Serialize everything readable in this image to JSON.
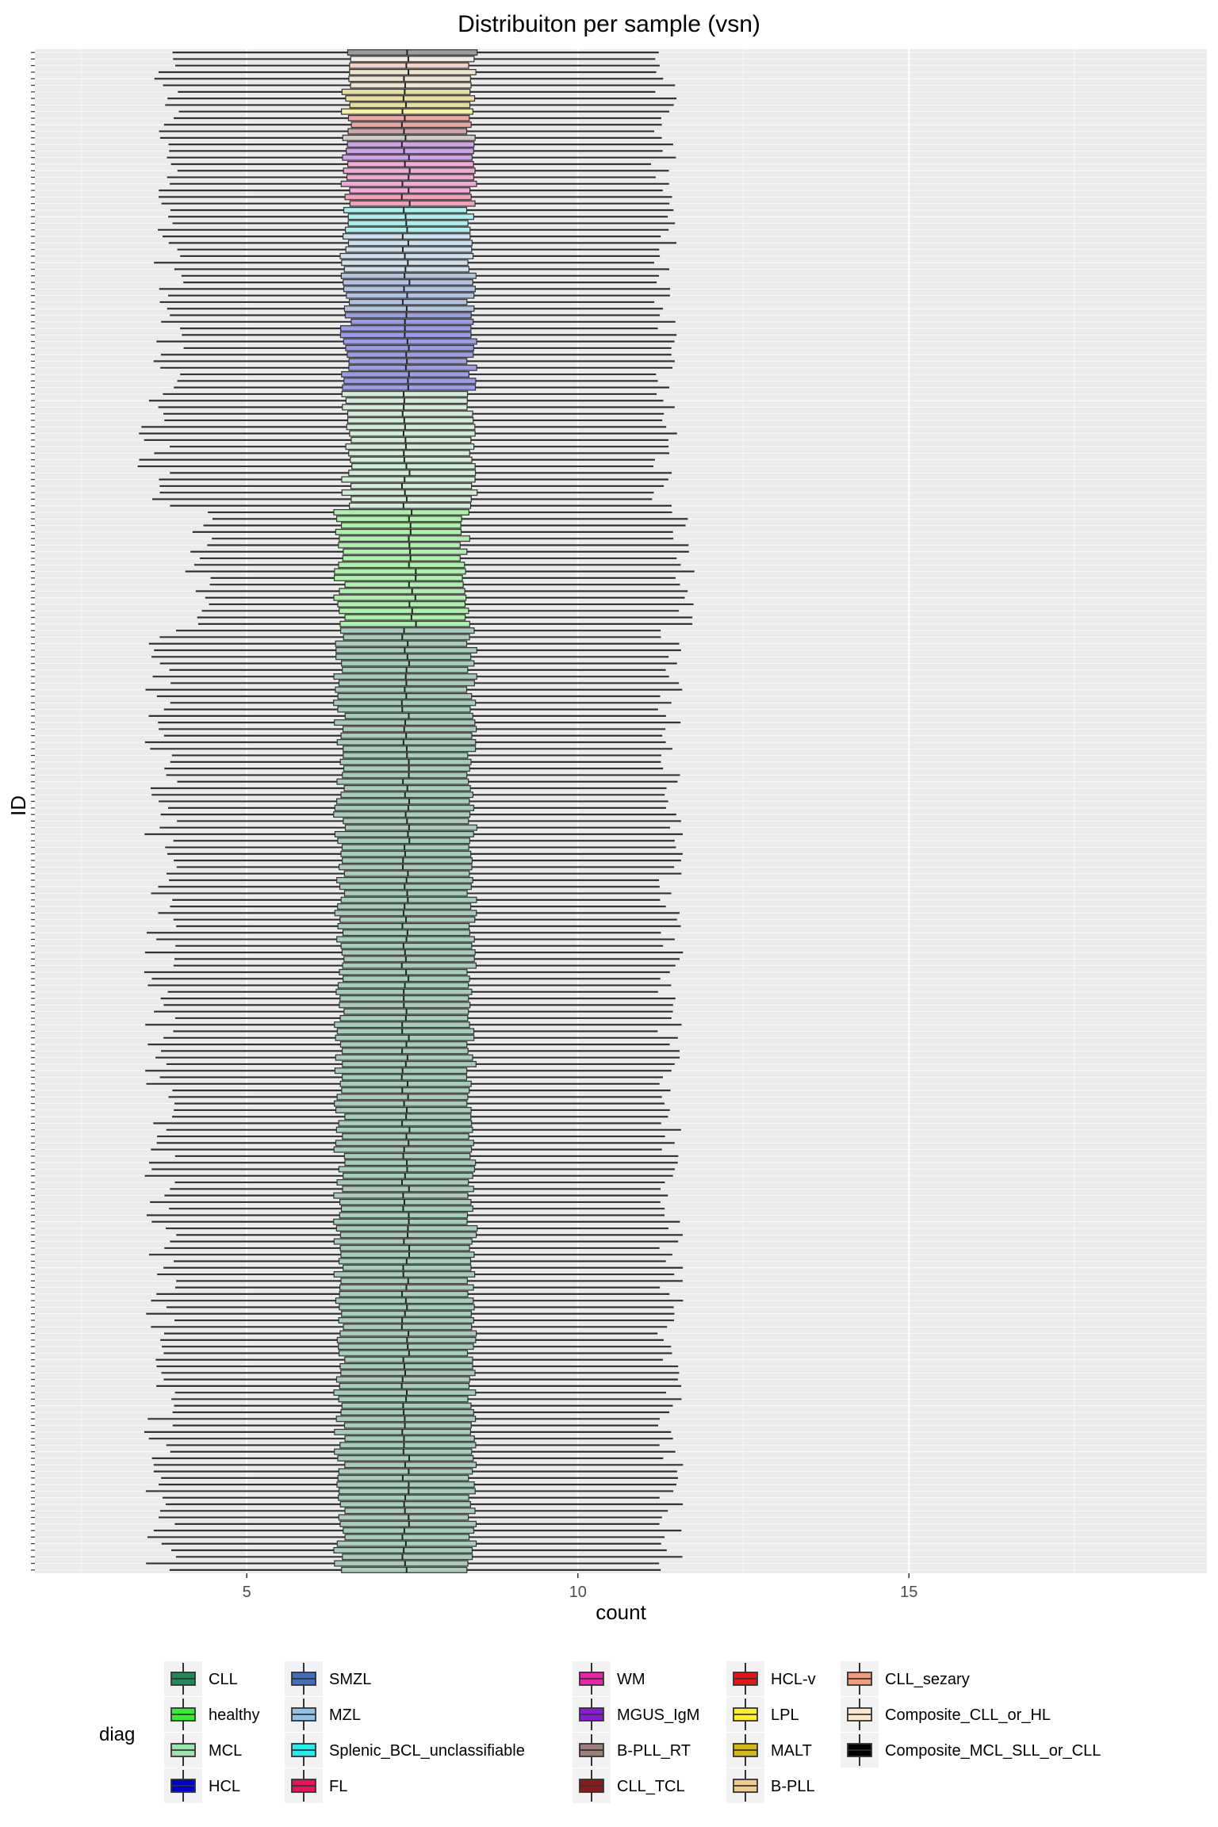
{
  "chart_data": {
    "type": "boxplot",
    "orientation": "horizontal",
    "title": "Distribuiton per sample (vsn)",
    "xlabel": "count",
    "ylabel": "ID",
    "xlim": [
      1.8,
      19.5
    ],
    "x_ticks": [
      5,
      10,
      15
    ],
    "grid": true,
    "n_samples": 232,
    "legend": {
      "title": "diag",
      "position": "bottom",
      "entries": [
        {
          "label": "CLL",
          "color": "#1f8a55"
        },
        {
          "label": "healthy",
          "color": "#33ee33"
        },
        {
          "label": "MCL",
          "color": "#99e6aa"
        },
        {
          "label": "HCL",
          "color": "#0000cc"
        },
        {
          "label": "SMZL",
          "color": "#3f6fc0"
        },
        {
          "label": "MZL",
          "color": "#8ec4ec"
        },
        {
          "label": "Splenic_BCL_unclassifiable",
          "color": "#22eeee"
        },
        {
          "label": "FL",
          "color": "#e6145a"
        },
        {
          "label": "WM",
          "color": "#ee22aa"
        },
        {
          "label": "MGUS_IgM",
          "color": "#8a1ad6"
        },
        {
          "label": "B-PLL_RT",
          "color": "#9a8078"
        },
        {
          "label": "CLL_TCL",
          "color": "#8b1a1a"
        },
        {
          "label": "HCL-v",
          "color": "#e61414"
        },
        {
          "label": "LPL",
          "color": "#ffee22"
        },
        {
          "label": "MALT",
          "color": "#d9b81a"
        },
        {
          "label": "B-PLL",
          "color": "#f2cc8c"
        },
        {
          "label": "CLL_sezary",
          "color": "#f59a78"
        },
        {
          "label": "Composite_CLL_or_HL",
          "color": "#fbe6cc"
        },
        {
          "label": "Composite_MCL_SLL_or_CLL",
          "color": "#000000"
        }
      ]
    },
    "groups": [
      {
        "diag": "Composite_MCL_SLL_or_CLL",
        "n": 1,
        "q1": 6.5,
        "median": 7.4,
        "q3": 8.4,
        "wlo": 3.8,
        "whi": 11.3
      },
      {
        "diag": "Composite_CLL_or_HL",
        "n": 1,
        "q1": 6.5,
        "median": 7.4,
        "q3": 8.4,
        "wlo": 3.8,
        "whi": 11.3
      },
      {
        "diag": "CLL_sezary",
        "n": 1,
        "q1": 6.5,
        "median": 7.4,
        "q3": 8.4,
        "wlo": 3.8,
        "whi": 11.3
      },
      {
        "diag": "B-PLL",
        "n": 3,
        "q1": 6.5,
        "median": 7.4,
        "q3": 8.4,
        "wlo": 3.8,
        "whi": 11.3
      },
      {
        "diag": "MALT",
        "n": 3,
        "q1": 6.5,
        "median": 7.4,
        "q3": 8.4,
        "wlo": 3.8,
        "whi": 11.3
      },
      {
        "diag": "LPL",
        "n": 1,
        "q1": 6.5,
        "median": 7.4,
        "q3": 8.4,
        "wlo": 3.8,
        "whi": 11.3
      },
      {
        "diag": "HCL-v",
        "n": 2,
        "q1": 6.5,
        "median": 7.4,
        "q3": 8.4,
        "wlo": 3.8,
        "whi": 11.3
      },
      {
        "diag": "CLL_TCL",
        "n": 1,
        "q1": 6.5,
        "median": 7.4,
        "q3": 8.4,
        "wlo": 3.8,
        "whi": 11.3
      },
      {
        "diag": "B-PLL_RT",
        "n": 1,
        "q1": 6.5,
        "median": 7.4,
        "q3": 8.4,
        "wlo": 3.8,
        "whi": 11.3
      },
      {
        "diag": "MGUS_IgM",
        "n": 3,
        "q1": 6.5,
        "median": 7.4,
        "q3": 8.4,
        "wlo": 3.8,
        "whi": 11.3
      },
      {
        "diag": "WM",
        "n": 5,
        "q1": 6.5,
        "median": 7.4,
        "q3": 8.4,
        "wlo": 3.8,
        "whi": 11.3
      },
      {
        "diag": "FL",
        "n": 2,
        "q1": 6.5,
        "median": 7.4,
        "q3": 8.4,
        "wlo": 3.8,
        "whi": 11.3
      },
      {
        "diag": "Splenic_BCL_unclassifiable",
        "n": 4,
        "q1": 6.5,
        "median": 7.4,
        "q3": 8.4,
        "wlo": 3.8,
        "whi": 11.3
      },
      {
        "diag": "MZL",
        "n": 6,
        "q1": 6.5,
        "median": 7.4,
        "q3": 8.4,
        "wlo": 3.8,
        "whi": 11.3
      },
      {
        "diag": "SMZL",
        "n": 6,
        "q1": 6.5,
        "median": 7.4,
        "q3": 8.4,
        "wlo": 3.8,
        "whi": 11.3
      },
      {
        "diag": "HCL",
        "n": 12,
        "q1": 6.5,
        "median": 7.4,
        "q3": 8.4,
        "wlo": 3.8,
        "whi": 11.3
      },
      {
        "diag": "MCL",
        "n": 18,
        "q1": 6.5,
        "median": 7.4,
        "q3": 8.4,
        "wlo": 3.6,
        "whi": 11.3
      },
      {
        "diag": "healthy",
        "n": 18,
        "q1": 6.4,
        "median": 7.5,
        "q3": 8.3,
        "wlo": 4.3,
        "whi": 11.6
      },
      {
        "diag": "CLL",
        "n": 144,
        "q1": 6.4,
        "median": 7.4,
        "q3": 8.4,
        "wlo": 3.7,
        "whi": 11.4
      }
    ]
  }
}
